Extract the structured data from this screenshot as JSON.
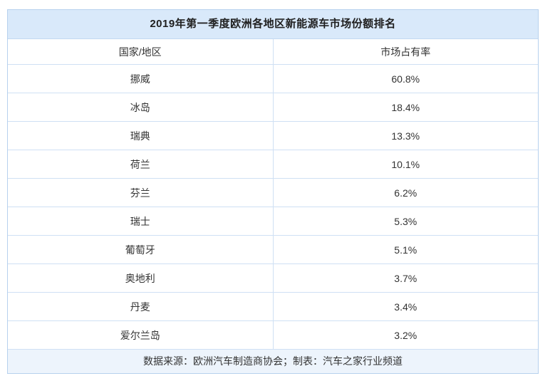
{
  "colors": {
    "title_bg": "#d9e9fa",
    "footer_bg": "#edf4fc",
    "border": "#cfe0f4",
    "outer_border": "#b7d1ee",
    "text": "#333333",
    "title_text": "#1f1f1f"
  },
  "chart_data": {
    "type": "table",
    "title": "2019年第一季度欧洲各地区新能源车市场份额排名",
    "columns": [
      "国家/地区",
      "市场占有率"
    ],
    "rows": [
      {
        "region": "挪威",
        "share": "60.8%"
      },
      {
        "region": "冰岛",
        "share": "18.4%"
      },
      {
        "region": "瑞典",
        "share": "13.3%"
      },
      {
        "region": "荷兰",
        "share": "10.1%"
      },
      {
        "region": "芬兰",
        "share": "6.2%"
      },
      {
        "region": "瑞士",
        "share": "5.3%"
      },
      {
        "region": "葡萄牙",
        "share": "5.1%"
      },
      {
        "region": "奥地利",
        "share": "3.7%"
      },
      {
        "region": "丹麦",
        "share": "3.4%"
      },
      {
        "region": "爱尔兰岛",
        "share": "3.2%"
      }
    ],
    "footer": "数据来源：欧洲汽车制造商协会；制表：汽车之家行业频道"
  }
}
